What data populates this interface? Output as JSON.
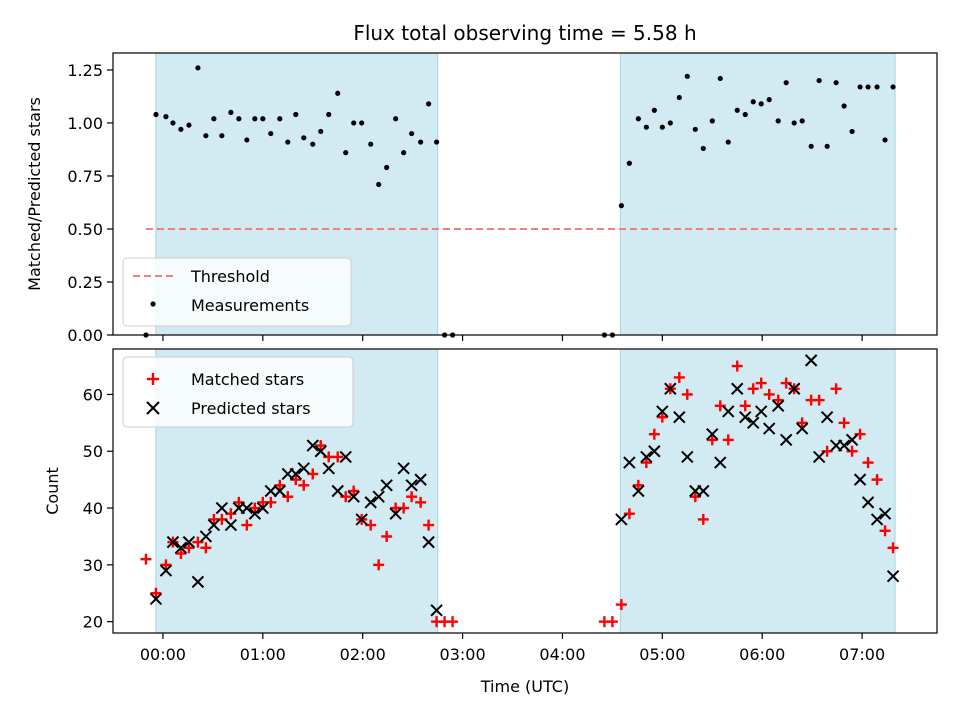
{
  "chart_data": [
    {
      "panel": "top",
      "type": "scatter",
      "title": "Flux total observing time = 5.58 h",
      "ylabel": "Matched/Predicted stars",
      "xlim_hours": [
        -0.5,
        7.75
      ],
      "ylim": [
        0,
        1.33
      ],
      "yticks": [
        0.0,
        0.25,
        0.5,
        0.75,
        1.0,
        1.25
      ],
      "ytick_labels": [
        "0.00",
        "0.25",
        "0.50",
        "0.75",
        "1.00",
        "1.25"
      ],
      "observing_windows_hours": [
        [
          -0.07,
          2.75
        ],
        [
          4.58,
          7.33
        ]
      ],
      "window_color": "#add8e6",
      "threshold": {
        "name": "Threshold",
        "value": 0.5,
        "x_range_hours": [
          -0.17,
          7.35
        ],
        "color": "#f08080"
      },
      "legend": {
        "placement": "lower-left",
        "entries": [
          {
            "label": "Threshold",
            "marker": "dashed-line",
            "color": "#f08080"
          },
          {
            "label": "Measurements",
            "marker": "dot",
            "color": "#000000"
          }
        ]
      },
      "series": [
        {
          "name": "Measurements",
          "color": "#000000",
          "points": [
            [
              -0.17,
              0.0
            ],
            [
              -0.07,
              1.04
            ],
            [
              0.03,
              1.03
            ],
            [
              0.1,
              1.0
            ],
            [
              0.18,
              0.97
            ],
            [
              0.26,
              0.99
            ],
            [
              0.35,
              1.26
            ],
            [
              0.43,
              0.94
            ],
            [
              0.51,
              1.02
            ],
            [
              0.59,
              0.94
            ],
            [
              0.68,
              1.05
            ],
            [
              0.76,
              1.02
            ],
            [
              0.84,
              0.92
            ],
            [
              0.92,
              1.02
            ],
            [
              1.0,
              1.02
            ],
            [
              1.08,
              0.95
            ],
            [
              1.17,
              1.02
            ],
            [
              1.25,
              0.91
            ],
            [
              1.33,
              1.04
            ],
            [
              1.41,
              0.93
            ],
            [
              1.5,
              0.9
            ],
            [
              1.58,
              0.96
            ],
            [
              1.66,
              1.04
            ],
            [
              1.75,
              1.14
            ],
            [
              1.83,
              0.86
            ],
            [
              1.91,
              1.0
            ],
            [
              1.99,
              1.0
            ],
            [
              2.08,
              0.9
            ],
            [
              2.16,
              0.71
            ],
            [
              2.24,
              0.79
            ],
            [
              2.33,
              1.02
            ],
            [
              2.41,
              0.86
            ],
            [
              2.49,
              0.95
            ],
            [
              2.58,
              0.91
            ],
            [
              2.66,
              1.09
            ],
            [
              2.74,
              0.91
            ],
            [
              2.82,
              0.0
            ],
            [
              2.9,
              0.0
            ],
            [
              4.42,
              0.0
            ],
            [
              4.5,
              0.0
            ],
            [
              4.59,
              0.61
            ],
            [
              4.67,
              0.81
            ],
            [
              4.76,
              1.02
            ],
            [
              4.84,
              0.98
            ],
            [
              4.92,
              1.06
            ],
            [
              5.0,
              0.98
            ],
            [
              5.08,
              1.0
            ],
            [
              5.17,
              1.12
            ],
            [
              5.25,
              1.22
            ],
            [
              5.33,
              0.97
            ],
            [
              5.41,
              0.88
            ],
            [
              5.5,
              1.01
            ],
            [
              5.58,
              1.21
            ],
            [
              5.66,
              0.91
            ],
            [
              5.75,
              1.06
            ],
            [
              5.83,
              1.04
            ],
            [
              5.91,
              1.1
            ],
            [
              5.99,
              1.09
            ],
            [
              6.07,
              1.11
            ],
            [
              6.16,
              1.01
            ],
            [
              6.24,
              1.19
            ],
            [
              6.32,
              1.0
            ],
            [
              6.4,
              1.01
            ],
            [
              6.49,
              0.89
            ],
            [
              6.57,
              1.2
            ],
            [
              6.65,
              0.89
            ],
            [
              6.74,
              1.19
            ],
            [
              6.82,
              1.08
            ],
            [
              6.9,
              0.96
            ],
            [
              6.98,
              1.17
            ],
            [
              7.06,
              1.17
            ],
            [
              7.15,
              1.17
            ],
            [
              7.23,
              0.92
            ],
            [
              7.31,
              1.17
            ]
          ]
        }
      ]
    },
    {
      "panel": "bottom",
      "type": "scatter",
      "xlabel": "Time (UTC)",
      "ylabel": "Count",
      "xlim_hours": [
        -0.5,
        7.75
      ],
      "ylim": [
        18,
        68
      ],
      "yticks": [
        20,
        30,
        40,
        50,
        60
      ],
      "ytick_labels": [
        "20",
        "30",
        "40",
        "50",
        "60"
      ],
      "xticks_hours": [
        0,
        1,
        2,
        3,
        4,
        5,
        6,
        7
      ],
      "xtick_labels": [
        "00:00",
        "01:00",
        "02:00",
        "03:00",
        "04:00",
        "05:00",
        "06:00",
        "07:00"
      ],
      "observing_windows_hours": [
        [
          -0.07,
          2.75
        ],
        [
          4.58,
          7.33
        ]
      ],
      "window_color": "#add8e6",
      "legend": {
        "placement": "top-left",
        "entries": [
          {
            "label": "Matched stars",
            "marker": "plus",
            "color": "#ff0000"
          },
          {
            "label": "Predicted stars",
            "marker": "x",
            "color": "#000000"
          }
        ]
      },
      "series": [
        {
          "name": "Matched stars",
          "color": "#ff0000",
          "marker": "plus",
          "points": [
            [
              -0.17,
              31
            ],
            [
              -0.07,
              25
            ],
            [
              0.03,
              30
            ],
            [
              0.1,
              34
            ],
            [
              0.18,
              32
            ],
            [
              0.26,
              33
            ],
            [
              0.35,
              34
            ],
            [
              0.43,
              33
            ],
            [
              0.51,
              38
            ],
            [
              0.59,
              38
            ],
            [
              0.68,
              39
            ],
            [
              0.76,
              41
            ],
            [
              0.84,
              37
            ],
            [
              0.92,
              40
            ],
            [
              1.0,
              41
            ],
            [
              1.08,
              41
            ],
            [
              1.17,
              44
            ],
            [
              1.25,
              42
            ],
            [
              1.33,
              45
            ],
            [
              1.41,
              44
            ],
            [
              1.5,
              46
            ],
            [
              1.58,
              51
            ],
            [
              1.66,
              49
            ],
            [
              1.75,
              49
            ],
            [
              1.83,
              42
            ],
            [
              1.91,
              43
            ],
            [
              1.99,
              38
            ],
            [
              2.08,
              37
            ],
            [
              2.16,
              30
            ],
            [
              2.24,
              35
            ],
            [
              2.33,
              40
            ],
            [
              2.41,
              40
            ],
            [
              2.49,
              42
            ],
            [
              2.58,
              41
            ],
            [
              2.66,
              37
            ],
            [
              2.74,
              20
            ],
            [
              2.82,
              20
            ],
            [
              2.9,
              20
            ],
            [
              4.42,
              20
            ],
            [
              4.5,
              20
            ],
            [
              4.59,
              23
            ],
            [
              4.67,
              39
            ],
            [
              4.76,
              44
            ],
            [
              4.84,
              48
            ],
            [
              4.92,
              53
            ],
            [
              5.0,
              56
            ],
            [
              5.08,
              61
            ],
            [
              5.17,
              63
            ],
            [
              5.25,
              60
            ],
            [
              5.33,
              42
            ],
            [
              5.41,
              38
            ],
            [
              5.5,
              52
            ],
            [
              5.58,
              58
            ],
            [
              5.66,
              52
            ],
            [
              5.75,
              65
            ],
            [
              5.83,
              58
            ],
            [
              5.91,
              61
            ],
            [
              5.99,
              62
            ],
            [
              6.07,
              60
            ],
            [
              6.16,
              59
            ],
            [
              6.24,
              62
            ],
            [
              6.32,
              61
            ],
            [
              6.4,
              55
            ],
            [
              6.49,
              59
            ],
            [
              6.57,
              59
            ],
            [
              6.65,
              50
            ],
            [
              6.74,
              61
            ],
            [
              6.82,
              55
            ],
            [
              6.9,
              50
            ],
            [
              6.98,
              53
            ],
            [
              7.06,
              48
            ],
            [
              7.15,
              45
            ],
            [
              7.23,
              36
            ],
            [
              7.31,
              33
            ]
          ]
        },
        {
          "name": "Predicted stars",
          "color": "#000000",
          "marker": "x",
          "points": [
            [
              -0.07,
              24
            ],
            [
              0.03,
              29
            ],
            [
              0.1,
              34
            ],
            [
              0.18,
              33
            ],
            [
              0.26,
              34
            ],
            [
              0.35,
              27
            ],
            [
              0.43,
              35
            ],
            [
              0.51,
              37
            ],
            [
              0.59,
              40
            ],
            [
              0.68,
              37
            ],
            [
              0.76,
              40
            ],
            [
              0.84,
              40
            ],
            [
              0.92,
              39
            ],
            [
              1.0,
              40
            ],
            [
              1.08,
              43
            ],
            [
              1.17,
              43
            ],
            [
              1.25,
              46
            ],
            [
              1.33,
              46
            ],
            [
              1.41,
              47
            ],
            [
              1.5,
              51
            ],
            [
              1.58,
              50
            ],
            [
              1.66,
              47
            ],
            [
              1.75,
              43
            ],
            [
              1.83,
              49
            ],
            [
              1.91,
              42
            ],
            [
              1.99,
              38
            ],
            [
              2.08,
              41
            ],
            [
              2.16,
              42
            ],
            [
              2.24,
              44
            ],
            [
              2.33,
              39
            ],
            [
              2.41,
              47
            ],
            [
              2.49,
              44
            ],
            [
              2.58,
              45
            ],
            [
              2.66,
              34
            ],
            [
              2.74,
              22
            ],
            [
              4.59,
              38
            ],
            [
              4.67,
              48
            ],
            [
              4.76,
              43
            ],
            [
              4.84,
              49
            ],
            [
              4.92,
              50
            ],
            [
              5.0,
              57
            ],
            [
              5.08,
              61
            ],
            [
              5.17,
              56
            ],
            [
              5.25,
              49
            ],
            [
              5.33,
              43
            ],
            [
              5.41,
              43
            ],
            [
              5.5,
              53
            ],
            [
              5.58,
              48
            ],
            [
              5.66,
              57
            ],
            [
              5.75,
              61
            ],
            [
              5.83,
              56
            ],
            [
              5.91,
              55
            ],
            [
              5.99,
              57
            ],
            [
              6.07,
              54
            ],
            [
              6.16,
              58
            ],
            [
              6.24,
              52
            ],
            [
              6.32,
              61
            ],
            [
              6.4,
              54
            ],
            [
              6.49,
              66
            ],
            [
              6.57,
              49
            ],
            [
              6.65,
              56
            ],
            [
              6.74,
              51
            ],
            [
              6.82,
              51
            ],
            [
              6.9,
              52
            ],
            [
              6.98,
              45
            ],
            [
              7.06,
              41
            ],
            [
              7.15,
              38
            ],
            [
              7.23,
              39
            ],
            [
              7.31,
              28
            ]
          ]
        }
      ]
    }
  ]
}
